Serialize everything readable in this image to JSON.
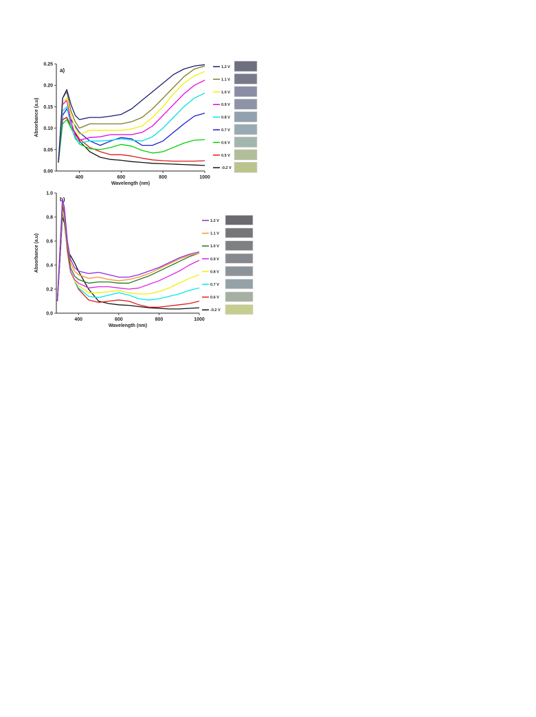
{
  "chart_data": [
    {
      "type": "line",
      "panel_label": "a)",
      "xlabel": "Wavelength (nm)",
      "ylabel": "Absorbance (a.u)",
      "xlim": [
        290,
        1000
      ],
      "ylim": [
        0,
        0.25
      ],
      "xticks": [
        "400",
        "600",
        "800",
        "1000"
      ],
      "yticks": [
        "0.00",
        "0.05",
        "0.10",
        "0.15",
        "0.20",
        "0.25"
      ],
      "x": [
        300,
        320,
        340,
        360,
        380,
        400,
        450,
        500,
        550,
        600,
        650,
        700,
        750,
        800,
        850,
        900,
        950,
        1000
      ],
      "legend_position": "right",
      "series": [
        {
          "name": "1.2 V",
          "color": "#1a1a6e",
          "swatch": "#6e7080",
          "values": [
            0.02,
            0.17,
            0.19,
            0.155,
            0.13,
            0.12,
            0.125,
            0.125,
            0.128,
            0.132,
            0.145,
            0.165,
            0.185,
            0.205,
            0.225,
            0.238,
            0.245,
            0.248
          ]
        },
        {
          "name": "1.1 V",
          "color": "#7a7a22",
          "swatch": "#787a8a",
          "values": [
            0.02,
            0.17,
            0.185,
            0.14,
            0.115,
            0.1,
            0.11,
            0.11,
            0.11,
            0.11,
            0.115,
            0.125,
            0.145,
            0.17,
            0.195,
            0.22,
            0.238,
            0.245
          ]
        },
        {
          "name": "1.0 V",
          "color": "#f2f000",
          "swatch": "#8a8ea4",
          "values": [
            0.02,
            0.16,
            0.17,
            0.13,
            0.1,
            0.085,
            0.095,
            0.095,
            0.095,
            0.095,
            0.098,
            0.105,
            0.125,
            0.15,
            0.18,
            0.205,
            0.222,
            0.232
          ]
        },
        {
          "name": "0.9 V",
          "color": "#e400e4",
          "swatch": "#8e94a8",
          "values": [
            0.02,
            0.155,
            0.165,
            0.115,
            0.085,
            0.072,
            0.078,
            0.08,
            0.085,
            0.085,
            0.085,
            0.09,
            0.105,
            0.13,
            0.155,
            0.18,
            0.2,
            0.212
          ]
        },
        {
          "name": "0.8 V",
          "color": "#00e0e0",
          "swatch": "#93a0ae",
          "values": [
            0.02,
            0.14,
            0.15,
            0.105,
            0.075,
            0.065,
            0.07,
            0.07,
            0.072,
            0.075,
            0.072,
            0.07,
            0.08,
            0.1,
            0.125,
            0.15,
            0.17,
            0.182
          ]
        },
        {
          "name": "0.7 V",
          "color": "#1a1ad0",
          "swatch": "#98aab4",
          "values": [
            0.02,
            0.13,
            0.145,
            0.12,
            0.105,
            0.09,
            0.07,
            0.06,
            0.07,
            0.078,
            0.075,
            0.06,
            0.06,
            0.07,
            0.09,
            0.11,
            0.128,
            0.135
          ]
        },
        {
          "name": "0.6 V",
          "color": "#00d000",
          "swatch": "#a3b6ae",
          "values": [
            0.02,
            0.11,
            0.12,
            0.1,
            0.08,
            0.063,
            0.052,
            0.05,
            0.055,
            0.062,
            0.058,
            0.048,
            0.042,
            0.045,
            0.055,
            0.065,
            0.072,
            0.073
          ]
        },
        {
          "name": "0.5 V",
          "color": "#e01818",
          "swatch": "#b2bd9a",
          "values": [
            0.02,
            0.12,
            0.125,
            0.105,
            0.09,
            0.075,
            0.055,
            0.045,
            0.038,
            0.038,
            0.035,
            0.03,
            0.026,
            0.024,
            0.023,
            0.023,
            0.023,
            0.024
          ]
        },
        {
          "name": "-0.2 V",
          "color": "#111111",
          "swatch": "#bcc48e",
          "values": [
            0.02,
            0.12,
            0.125,
            0.105,
            0.088,
            0.07,
            0.045,
            0.032,
            0.027,
            0.025,
            0.022,
            0.02,
            0.018,
            0.017,
            0.016,
            0.015,
            0.014,
            0.013
          ]
        }
      ]
    },
    {
      "type": "line",
      "panel_label": "b)",
      "xlabel": "Wavelength (nm)",
      "ylabel": "Absorbance (a.u)",
      "xlim": [
        290,
        1000
      ],
      "ylim": [
        0,
        1.0
      ],
      "xticks": [
        "400",
        "600",
        "800",
        "1000"
      ],
      "yticks": [
        "0.0",
        "0.2",
        "0.4",
        "0.6",
        "0.8",
        "1.0"
      ],
      "x": [
        295,
        310,
        320,
        330,
        345,
        360,
        380,
        400,
        450,
        500,
        550,
        600,
        650,
        700,
        750,
        800,
        850,
        900,
        950,
        1000
      ],
      "legend_position": "right",
      "series": [
        {
          "name": "1.2 V",
          "color": "#8a2be2",
          "swatch": "#6b6a70",
          "values": [
            0.1,
            0.6,
            0.95,
            0.88,
            0.6,
            0.45,
            0.38,
            0.35,
            0.33,
            0.34,
            0.32,
            0.3,
            0.3,
            0.32,
            0.35,
            0.38,
            0.42,
            0.46,
            0.49,
            0.51
          ]
        },
        {
          "name": "1.1 V",
          "color": "#ff9020",
          "swatch": "#767679",
          "values": [
            0.1,
            0.6,
            0.93,
            0.86,
            0.58,
            0.42,
            0.35,
            0.32,
            0.29,
            0.3,
            0.28,
            0.27,
            0.28,
            0.3,
            0.33,
            0.37,
            0.41,
            0.45,
            0.48,
            0.5
          ]
        },
        {
          "name": "1.0 V",
          "color": "#1e7a1e",
          "swatch": "#7e8082",
          "values": [
            0.1,
            0.58,
            0.9,
            0.84,
            0.55,
            0.38,
            0.31,
            0.28,
            0.25,
            0.26,
            0.26,
            0.25,
            0.25,
            0.28,
            0.31,
            0.35,
            0.39,
            0.43,
            0.47,
            0.5
          ]
        },
        {
          "name": "0.9 V",
          "color": "#e020e0",
          "swatch": "#868a90",
          "values": [
            0.1,
            0.56,
            0.88,
            0.82,
            0.52,
            0.35,
            0.28,
            0.25,
            0.21,
            0.22,
            0.22,
            0.21,
            0.2,
            0.21,
            0.24,
            0.27,
            0.31,
            0.35,
            0.4,
            0.44
          ]
        },
        {
          "name": "0.8 V",
          "color": "#f0f000",
          "swatch": "#8d9499",
          "values": [
            0.1,
            0.55,
            0.86,
            0.8,
            0.5,
            0.34,
            0.27,
            0.23,
            0.17,
            0.17,
            0.18,
            0.19,
            0.17,
            0.16,
            0.16,
            0.18,
            0.21,
            0.25,
            0.29,
            0.32
          ]
        },
        {
          "name": "0.7 V",
          "color": "#00e8e8",
          "swatch": "#94a2a8",
          "values": [
            0.1,
            0.54,
            0.85,
            0.79,
            0.5,
            0.34,
            0.27,
            0.21,
            0.14,
            0.13,
            0.15,
            0.17,
            0.15,
            0.12,
            0.11,
            0.12,
            0.14,
            0.16,
            0.19,
            0.21
          ]
        },
        {
          "name": "0.6 V",
          "color": "#e01818",
          "swatch": "#a5b0a2",
          "values": [
            0.1,
            0.53,
            0.84,
            0.78,
            0.5,
            0.35,
            0.27,
            0.2,
            0.11,
            0.09,
            0.1,
            0.11,
            0.1,
            0.07,
            0.05,
            0.05,
            0.06,
            0.07,
            0.08,
            0.1
          ]
        },
        {
          "name": "-0.2 V",
          "color": "#111111",
          "swatch": "#c7cd8e",
          "values": [
            0.1,
            0.5,
            0.8,
            0.75,
            0.52,
            0.48,
            0.42,
            0.35,
            0.2,
            0.1,
            0.08,
            0.07,
            0.065,
            0.055,
            0.045,
            0.04,
            0.035,
            0.035,
            0.04,
            0.045
          ]
        }
      ]
    }
  ]
}
